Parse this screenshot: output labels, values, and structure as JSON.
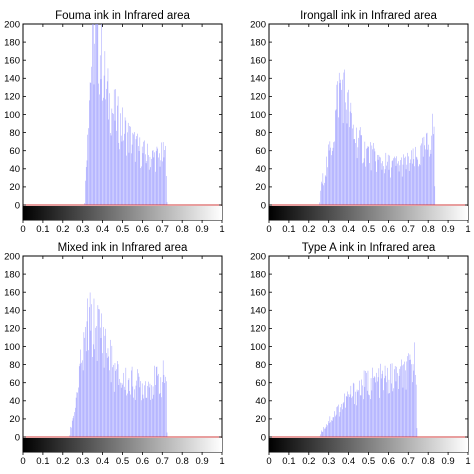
{
  "figure": {
    "panels": [
      {
        "title": "Fouma ink in Infrared area"
      },
      {
        "title": "Irongall ink in Infrared area"
      },
      {
        "title": "Mixed ink in Infrared area"
      },
      {
        "title": "Type A ink in Infrared area"
      }
    ]
  },
  "chart_data": [
    {
      "type": "bar",
      "title": "Fouma ink in Infrared area",
      "xlabel": "",
      "ylabel": "",
      "xlim": [
        0,
        1
      ],
      "ylim": [
        0,
        200
      ],
      "xticks": [
        "0",
        "0.1",
        "0.2",
        "0.3",
        "0.4",
        "0.5",
        "0.6",
        "0.7",
        "0.8",
        "0.9",
        "1"
      ],
      "yticks": [
        "0",
        "20",
        "40",
        "60",
        "80",
        "100",
        "120",
        "140",
        "160",
        "180",
        "200"
      ],
      "grid": false,
      "bar_color": "#9999ff",
      "colorbar": "grayscale black-to-white under x axis",
      "profile": [
        [
          0.31,
          0
        ],
        [
          0.32,
          60
        ],
        [
          0.33,
          130
        ],
        [
          0.345,
          180
        ],
        [
          0.36,
          200
        ],
        [
          0.38,
          198
        ],
        [
          0.4,
          180
        ],
        [
          0.42,
          140
        ],
        [
          0.45,
          120
        ],
        [
          0.48,
          105
        ],
        [
          0.52,
          90
        ],
        [
          0.56,
          75
        ],
        [
          0.6,
          65
        ],
        [
          0.64,
          60
        ],
        [
          0.68,
          60
        ],
        [
          0.72,
          62
        ],
        [
          0.725,
          0
        ]
      ]
    },
    {
      "type": "bar",
      "title": "Irongall ink in Infrared area",
      "xlabel": "",
      "ylabel": "",
      "xlim": [
        0,
        1
      ],
      "ylim": [
        0,
        200
      ],
      "xticks": [
        "0",
        "0.1",
        "0.2",
        "0.3",
        "0.4",
        "0.5",
        "0.6",
        "0.7",
        "0.8",
        "0.9",
        "1"
      ],
      "yticks": [
        "0",
        "20",
        "40",
        "60",
        "80",
        "100",
        "120",
        "140",
        "160",
        "180",
        "200"
      ],
      "grid": false,
      "bar_color": "#9999ff",
      "colorbar": "grayscale black-to-white under x axis",
      "profile": [
        [
          0.255,
          0
        ],
        [
          0.26,
          20
        ],
        [
          0.29,
          50
        ],
        [
          0.31,
          70
        ],
        [
          0.33,
          100
        ],
        [
          0.35,
          145
        ],
        [
          0.37,
          150
        ],
        [
          0.39,
          130
        ],
        [
          0.42,
          95
        ],
        [
          0.46,
          75
        ],
        [
          0.5,
          65
        ],
        [
          0.55,
          55
        ],
        [
          0.6,
          50
        ],
        [
          0.65,
          50
        ],
        [
          0.7,
          52
        ],
        [
          0.75,
          58
        ],
        [
          0.8,
          75
        ],
        [
          0.83,
          100
        ],
        [
          0.835,
          0
        ]
      ]
    },
    {
      "type": "bar",
      "title": "Mixed ink in Infrared area",
      "xlabel": "",
      "ylabel": "",
      "xlim": [
        0,
        1
      ],
      "ylim": [
        0,
        200
      ],
      "xticks": [
        "0",
        "0.1",
        "0.2",
        "0.3",
        "0.4",
        "0.5",
        "0.6",
        "0.7",
        "0.8",
        "0.9",
        "1"
      ],
      "yticks": [
        "0",
        "20",
        "40",
        "60",
        "80",
        "100",
        "120",
        "140",
        "160",
        "180",
        "200"
      ],
      "grid": false,
      "bar_color": "#9999ff",
      "colorbar": "grayscale black-to-white under x axis",
      "profile": [
        [
          0.235,
          0
        ],
        [
          0.24,
          10
        ],
        [
          0.26,
          35
        ],
        [
          0.28,
          70
        ],
        [
          0.31,
          110
        ],
        [
          0.33,
          145
        ],
        [
          0.35,
          135
        ],
        [
          0.37,
          138
        ],
        [
          0.4,
          130
        ],
        [
          0.43,
          105
        ],
        [
          0.46,
          80
        ],
        [
          0.5,
          70
        ],
        [
          0.55,
          68
        ],
        [
          0.6,
          65
        ],
        [
          0.65,
          68
        ],
        [
          0.7,
          72
        ],
        [
          0.72,
          80
        ],
        [
          0.725,
          0
        ]
      ]
    },
    {
      "type": "bar",
      "title": "Type A ink in Infrared area",
      "xlabel": "",
      "ylabel": "",
      "xlim": [
        0,
        1
      ],
      "ylim": [
        0,
        200
      ],
      "xticks": [
        "0",
        "0.1",
        "0.2",
        "0.3",
        "0.4",
        "0.5",
        "0.6",
        "0.7",
        "0.8",
        "0.9",
        "1"
      ],
      "yticks": [
        "0",
        "20",
        "40",
        "60",
        "80",
        "100",
        "120",
        "140",
        "160",
        "180",
        "200"
      ],
      "grid": false,
      "bar_color": "#9999ff",
      "colorbar": "grayscale black-to-white under x axis",
      "profile": [
        [
          0.255,
          0
        ],
        [
          0.26,
          5
        ],
        [
          0.3,
          20
        ],
        [
          0.35,
          35
        ],
        [
          0.4,
          50
        ],
        [
          0.45,
          60
        ],
        [
          0.5,
          68
        ],
        [
          0.55,
          70
        ],
        [
          0.6,
          72
        ],
        [
          0.65,
          75
        ],
        [
          0.7,
          80
        ],
        [
          0.72,
          90
        ],
        [
          0.74,
          95
        ],
        [
          0.745,
          0
        ]
      ]
    }
  ]
}
